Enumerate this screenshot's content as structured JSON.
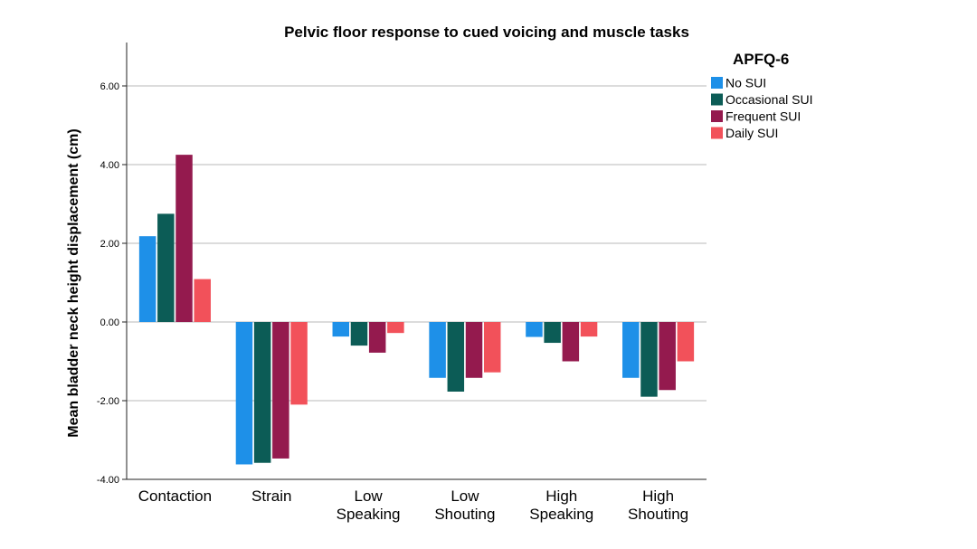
{
  "chart_data": {
    "type": "bar",
    "title": "Pelvic floor response to cued voicing and muscle tasks",
    "xlabel": "",
    "ylabel": "Mean bladder neck height displacement (cm)",
    "ylim": [
      -4.0,
      7.0
    ],
    "yticks": [
      "6.00",
      "4.00",
      "2.00",
      "0.00",
      "-2.00",
      "-4.00"
    ],
    "ytick_values": [
      6,
      4,
      2,
      0,
      -2,
      -4
    ],
    "grid": true,
    "legend_title": "APFQ-6",
    "legend_position": "top-right",
    "categories": [
      [
        "Contaction"
      ],
      [
        "Strain"
      ],
      [
        "Low",
        "Speaking"
      ],
      [
        "Low",
        "Shouting"
      ],
      [
        "High",
        "Speaking"
      ],
      [
        "High",
        "Shouting"
      ]
    ],
    "series": [
      {
        "name": "No SUI",
        "color": "#1e90e8",
        "values": [
          2.18,
          -3.62,
          -0.37,
          -1.42,
          -0.38,
          -1.42
        ]
      },
      {
        "name": "Occasional SUI",
        "color": "#0c5c56",
        "values": [
          2.75,
          -3.58,
          -0.6,
          -1.77,
          -0.53,
          -1.9
        ]
      },
      {
        "name": "Frequent SUI",
        "color": "#941a4e",
        "values": [
          4.25,
          -3.47,
          -0.78,
          -1.42,
          -1.0,
          -1.73
        ]
      },
      {
        "name": "Daily SUI",
        "color": "#f2515a",
        "values": [
          1.09,
          -2.1,
          -0.28,
          -1.28,
          -0.37,
          -1.0
        ]
      }
    ]
  }
}
